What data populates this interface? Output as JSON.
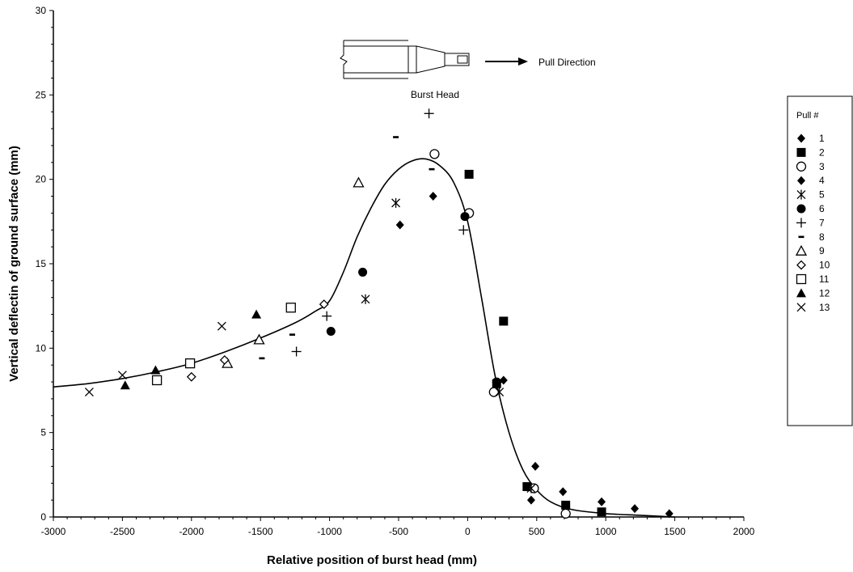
{
  "chart_data": {
    "type": "scatter",
    "xlabel": "Relative position of burst head (mm)",
    "ylabel": "Vertical deflectin of ground surface (mm)",
    "xlim": [
      -3000,
      2000
    ],
    "ylim": [
      0,
      30
    ],
    "xticks": [
      -3000,
      -2500,
      -2000,
      -1500,
      -1000,
      -500,
      0,
      500,
      1000,
      1500,
      2000
    ],
    "yticks": [
      0,
      5,
      10,
      15,
      20,
      25,
      30
    ],
    "grid": false,
    "legend": {
      "title": "Pull #",
      "placement": "right"
    },
    "annotations": {
      "burst_head": "Burst Head",
      "pull_direction": "Pull Direction"
    },
    "series": [
      {
        "name": "1",
        "marker": "diamond-filled",
        "points": [
          [
            490,
            3.0
          ],
          [
            690,
            1.5
          ],
          [
            970,
            0.9
          ],
          [
            1210,
            0.5
          ],
          [
            1460,
            0.2
          ],
          [
            710,
            0.2
          ],
          [
            460,
            1.0
          ],
          [
            260,
            8.1
          ]
        ]
      },
      {
        "name": "2",
        "marker": "square-filled",
        "points": [
          [
            10,
            20.3
          ],
          [
            260,
            11.6
          ],
          [
            430,
            1.8
          ],
          [
            710,
            0.7
          ],
          [
            970,
            0.3
          ],
          [
            210,
            7.9
          ]
        ]
      },
      {
        "name": "3",
        "marker": "circle-open",
        "points": [
          [
            -240,
            21.5
          ],
          [
            10,
            18.0
          ],
          [
            190,
            7.4
          ],
          [
            480,
            1.7
          ],
          [
            710,
            0.2
          ]
        ]
      },
      {
        "name": "4",
        "marker": "diamond-filled",
        "points": [
          [
            -490,
            17.3
          ],
          [
            -250,
            19.0
          ],
          [
            220,
            8.0
          ]
        ]
      },
      {
        "name": "5",
        "marker": "asterisk",
        "points": [
          [
            -520,
            18.6
          ],
          [
            -740,
            12.9
          ],
          [
            230,
            7.4
          ],
          [
            460,
            1.7
          ]
        ]
      },
      {
        "name": "6",
        "marker": "circle-filled",
        "points": [
          [
            -760,
            14.5
          ],
          [
            -990,
            11.0
          ],
          [
            -20,
            17.8
          ],
          [
            210,
            8.0
          ]
        ]
      },
      {
        "name": "7",
        "marker": "plus",
        "points": [
          [
            -280,
            23.9
          ],
          [
            -1020,
            11.9
          ],
          [
            -1240,
            9.8
          ],
          [
            -30,
            17.0
          ]
        ]
      },
      {
        "name": "8",
        "marker": "dash",
        "points": [
          [
            -520,
            22.5
          ],
          [
            -260,
            20.6
          ],
          [
            -1270,
            10.8
          ],
          [
            -1490,
            9.4
          ]
        ]
      },
      {
        "name": "9",
        "marker": "triangle-open",
        "points": [
          [
            -790,
            19.8
          ],
          [
            -1510,
            10.5
          ],
          [
            -1740,
            9.1
          ]
        ]
      },
      {
        "name": "10",
        "marker": "diamond-open",
        "points": [
          [
            -1040,
            12.6
          ],
          [
            -1760,
            9.3
          ],
          [
            -2000,
            8.3
          ]
        ]
      },
      {
        "name": "11",
        "marker": "square-open",
        "points": [
          [
            -1280,
            12.4
          ],
          [
            -2010,
            9.1
          ],
          [
            -2250,
            8.1
          ]
        ]
      },
      {
        "name": "12",
        "marker": "triangle-filled",
        "points": [
          [
            -1530,
            12.0
          ],
          [
            -2260,
            8.7
          ],
          [
            -2480,
            7.8
          ]
        ]
      },
      {
        "name": "13",
        "marker": "x",
        "points": [
          [
            -1780,
            11.3
          ],
          [
            -2500,
            8.4
          ],
          [
            -2740,
            7.4
          ]
        ]
      }
    ],
    "trend_line": {
      "x": [
        -3000,
        -2750,
        -2500,
        -2250,
        -2000,
        -1750,
        -1500,
        -1250,
        -1100,
        -1000,
        -900,
        -800,
        -700,
        -600,
        -500,
        -400,
        -300,
        -200,
        -100,
        0,
        100,
        200,
        300,
        400,
        500,
        600,
        750,
        1000,
        1250,
        1500
      ],
      "y": [
        7.7,
        7.9,
        8.2,
        8.6,
        9.1,
        9.8,
        10.6,
        11.5,
        12.2,
        12.8,
        14.5,
        16.6,
        18.3,
        19.7,
        20.6,
        21.1,
        21.2,
        20.8,
        19.8,
        17.5,
        13.0,
        8.3,
        5.0,
        2.8,
        1.6,
        0.9,
        0.45,
        0.2,
        0.1,
        0.0
      ]
    }
  }
}
